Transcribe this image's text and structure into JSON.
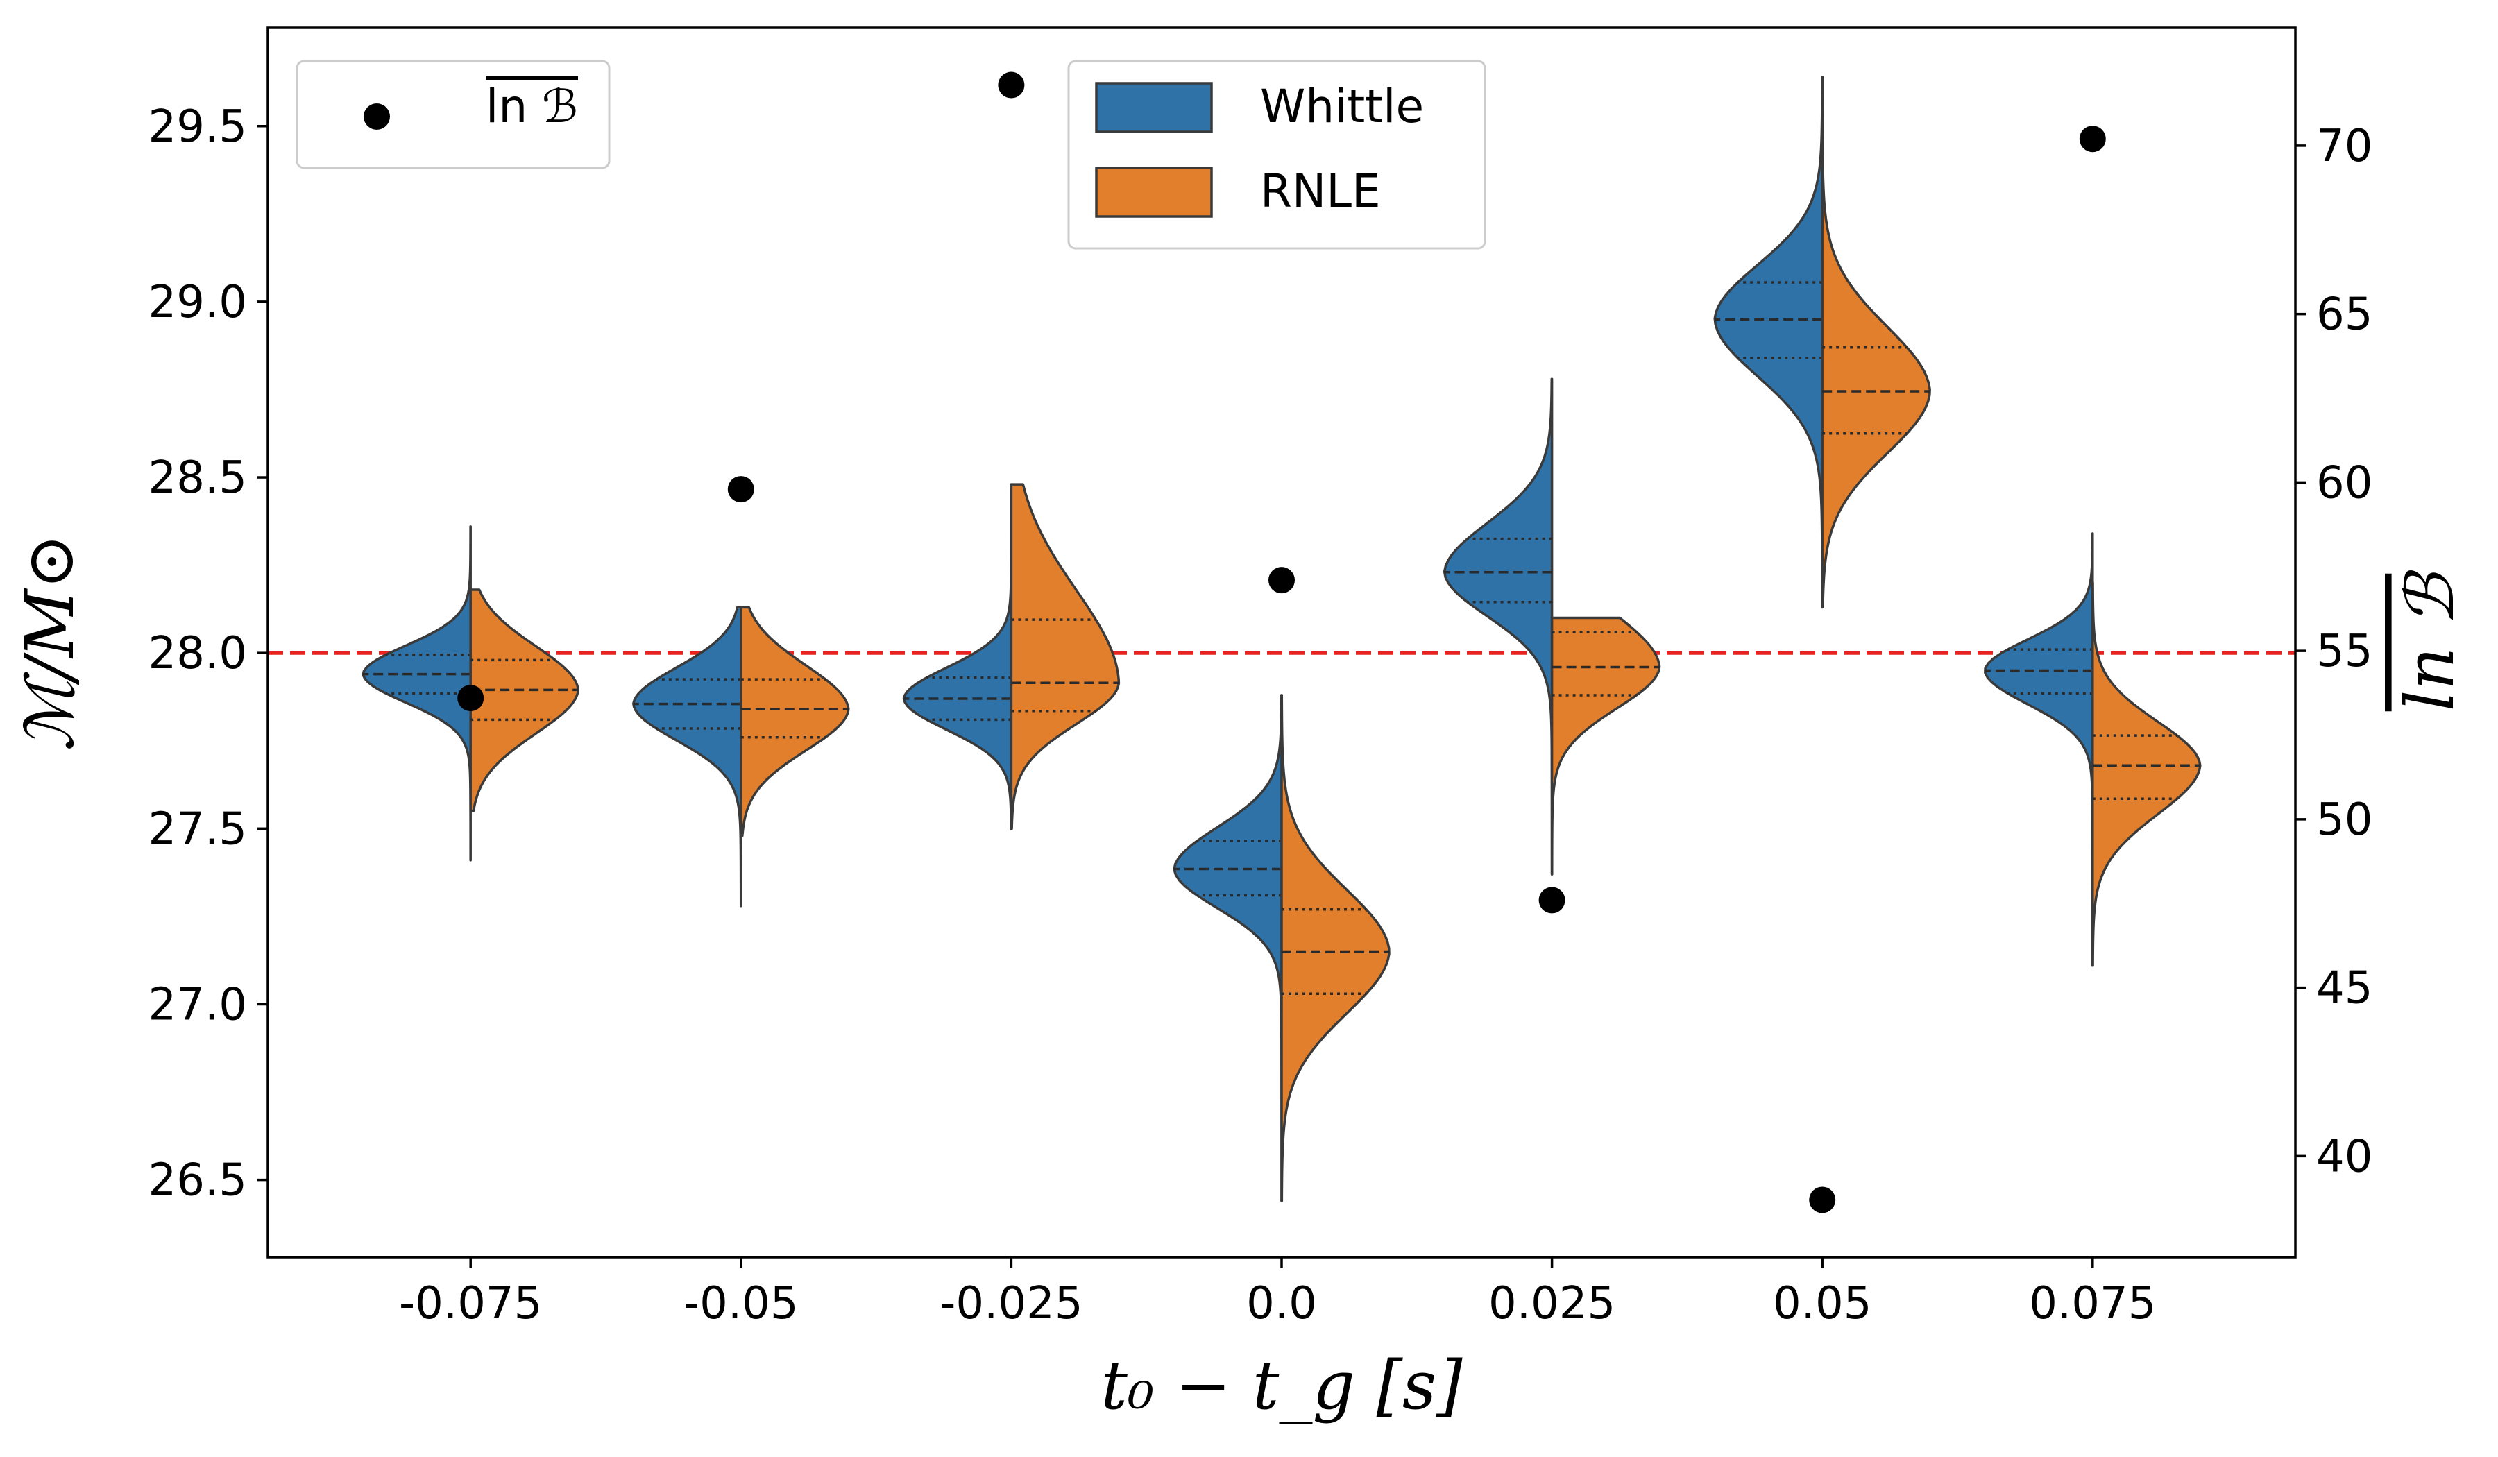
{
  "chart_data": {
    "type": "violin",
    "subtype": "split-violin with secondary-axis scatter",
    "categories": [
      "-0.075",
      "-0.05",
      "-0.025",
      "0.0",
      "0.025",
      "0.05",
      "0.075"
    ],
    "xlabel": "t₀ − t_g [s]",
    "ylabel": "ℳ/M⊙",
    "y2label": "ln ℬ",
    "ylim": [
      26.28,
      29.78
    ],
    "y2lim": [
      37.0,
      73.5
    ],
    "yticks": [
      "26.5",
      "27.0",
      "27.5",
      "28.0",
      "28.5",
      "29.0",
      "29.5"
    ],
    "y2ticks": [
      "40",
      "45",
      "50",
      "55",
      "60",
      "65",
      "70"
    ],
    "reference_line": {
      "y": 28.0,
      "style": "dashed",
      "color": "#e8231f"
    },
    "series": [
      {
        "name": "Whittle",
        "color": "#2e72a8",
        "side": "left",
        "median": [
          27.94,
          27.855,
          27.87,
          27.385,
          28.23,
          28.95,
          27.95
        ],
        "q1": [
          27.885,
          27.785,
          27.81,
          27.31,
          28.145,
          28.84,
          27.885
        ],
        "q3": [
          27.995,
          27.925,
          27.93,
          27.465,
          28.325,
          29.055,
          28.01
        ],
        "min": [
          27.41,
          27.28,
          27.5,
          26.44,
          27.37,
          28.13,
          27.11
        ],
        "max": [
          28.36,
          28.13,
          28.48,
          27.88,
          28.78,
          29.64,
          28.34
        ]
      },
      {
        "name": "RNLE",
        "color": "#e27f2c",
        "side": "right",
        "median": [
          27.895,
          27.84,
          27.915,
          27.15,
          27.96,
          28.745,
          27.68
        ],
        "q1": [
          27.81,
          27.76,
          27.835,
          27.03,
          27.88,
          28.625,
          27.585
        ],
        "q3": [
          27.98,
          27.925,
          28.095,
          27.27,
          28.06,
          28.87,
          27.765
        ],
        "min": [
          27.55,
          27.48,
          27.5,
          26.44,
          27.37,
          28.13,
          27.11
        ],
        "max": [
          28.18,
          28.13,
          28.48,
          27.88,
          28.1,
          29.64,
          28.2
        ]
      },
      {
        "name": "ln ℬ",
        "axis": "secondary",
        "type": "scatter",
        "color": "#000000",
        "values": [
          53.6,
          59.8,
          71.8,
          57.1,
          47.6,
          38.7,
          70.2
        ]
      }
    ],
    "legends": [
      {
        "position": "upper-left",
        "entries": [
          "ln ℬ"
        ]
      },
      {
        "position": "top-center",
        "entries": [
          "Whittle",
          "RNLE"
        ]
      }
    ]
  }
}
